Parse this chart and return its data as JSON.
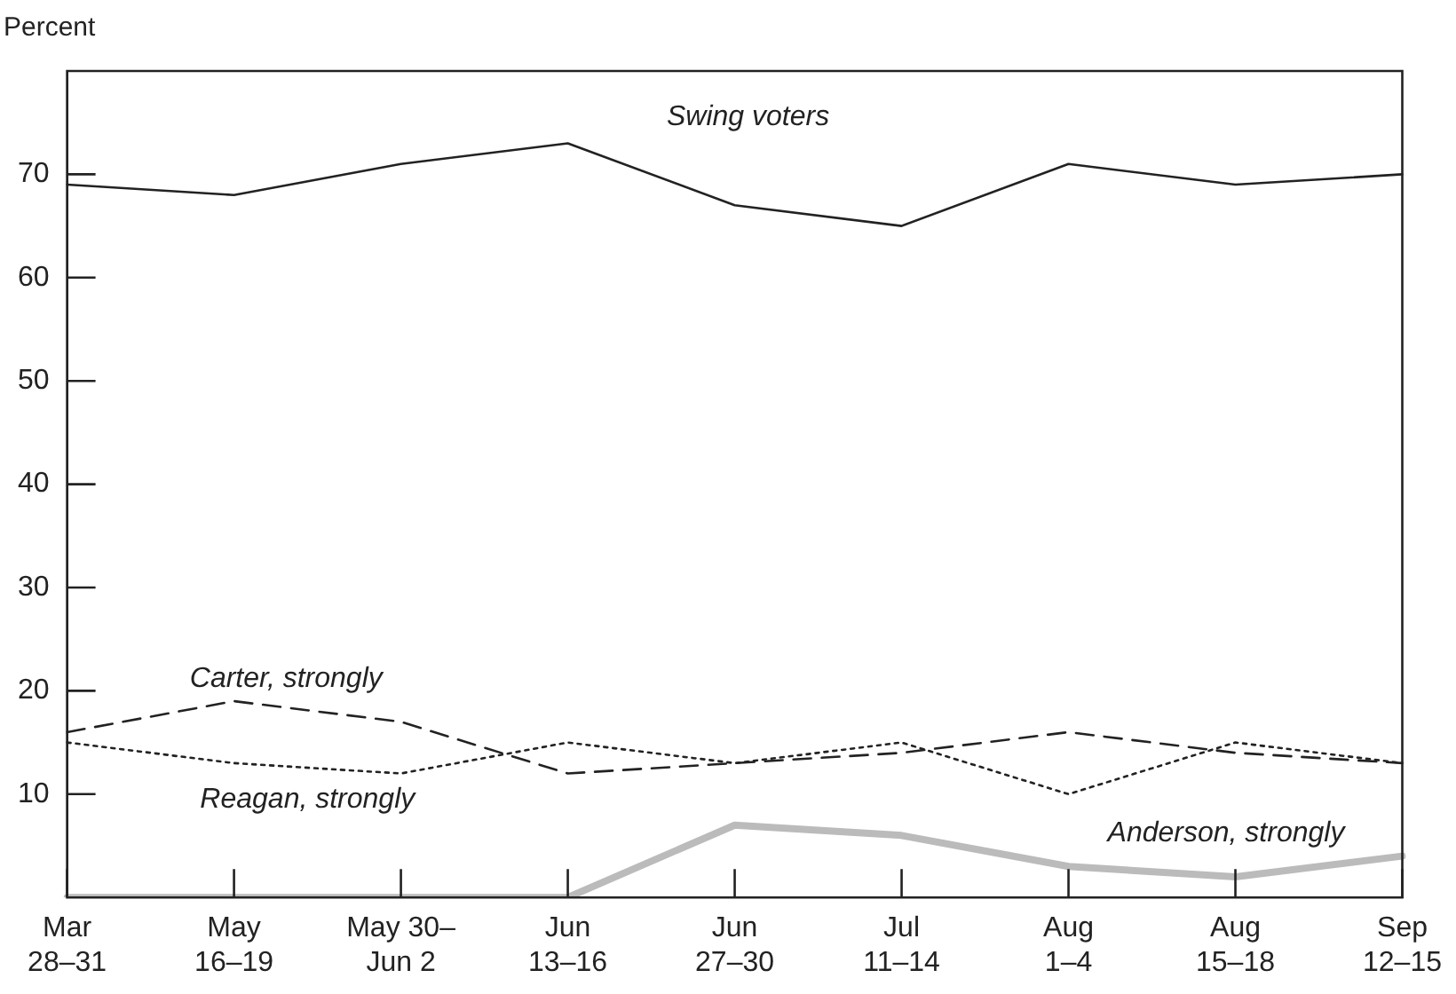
{
  "chart_data": {
    "type": "line",
    "ylabel": "Percent",
    "categories": [
      "Mar\n28–31",
      "May\n16–19",
      "May 30–\nJun 2",
      "Jun\n13–16",
      "Jun\n27–30",
      "Jul\n11–14",
      "Aug\n1–4",
      "Aug\n15–18",
      "Sep\n12–15"
    ],
    "series": [
      {
        "color": "#222222",
        "line_style": "solid",
        "values": [
          69,
          68,
          71,
          73,
          67,
          65,
          71,
          69,
          70
        ]
      },
      {
        "color": "#222222",
        "line_style": "dashed",
        "values": [
          16,
          19,
          17,
          12,
          13,
          14,
          16,
          14,
          13
        ]
      },
      {
        "color": "#222222",
        "line_style": "dotted",
        "values": [
          15,
          13,
          12,
          15,
          13,
          15,
          10,
          15,
          13
        ]
      },
      {
        "color": "#bbbbbb",
        "line_style": "solid",
        "values": [
          0,
          0,
          0,
          0,
          7,
          6,
          3,
          2,
          4
        ]
      }
    ],
    "annotations": [
      "Swing voters",
      "Carter, strongly",
      "Reagan, strongly",
      "Anderson, strongly"
    ],
    "ylim": [
      0,
      80
    ],
    "yticks": [
      10,
      20,
      30,
      40,
      50,
      60,
      70
    ],
    "grid": false,
    "legend": false,
    "marker": "none"
  }
}
